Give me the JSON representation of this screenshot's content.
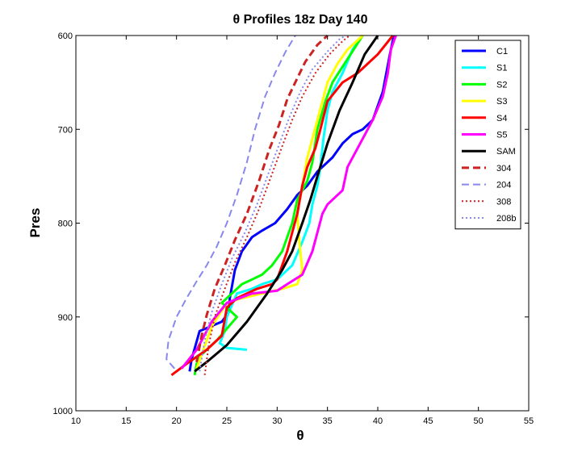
{
  "chart_data": {
    "type": "line",
    "title": "θ Profiles 18z Day 140",
    "xlabel": "θ",
    "ylabel": "Pres",
    "xlim": [
      10,
      55
    ],
    "ylim": [
      1000,
      600
    ],
    "y_reversed": true,
    "grid": false,
    "legend_placement": "top-right",
    "x_ticks": [
      "10",
      "15",
      "20",
      "25",
      "30",
      "35",
      "40",
      "45",
      "50",
      "55"
    ],
    "y_ticks": [
      "600",
      "700",
      "800",
      "900",
      "1000"
    ],
    "series": [
      {
        "name": "C1",
        "color": "#0000ff",
        "dash": "solid",
        "width": 3,
        "x": [
          21.3,
          21.5,
          22.3,
          24.5,
          25.2,
          25.3,
          25.8,
          26.5,
          27.5,
          28.5,
          29.8,
          31.0,
          32.0,
          33.0,
          34.0,
          35.5,
          36.5,
          37.5,
          38.5,
          39.5,
          40.5,
          41.2,
          41.6
        ],
        "y": [
          958,
          945,
          915,
          905,
          895,
          880,
          850,
          830,
          815,
          808,
          800,
          785,
          770,
          760,
          745,
          730,
          715,
          705,
          700,
          690,
          660,
          620,
          600
        ]
      },
      {
        "name": "S1",
        "color": "#00ffff",
        "dash": "solid",
        "width": 3,
        "x": [
          27.0,
          25.0,
          24.3,
          24.8,
          25.0,
          26.0,
          27.5,
          28.5,
          30.0,
          31.5,
          32.5,
          33.2,
          33.5,
          34.0,
          34.3,
          34.6,
          35.0,
          35.5,
          36.5,
          37.5,
          38.5
        ],
        "y": [
          935,
          933,
          928,
          915,
          900,
          875,
          870,
          865,
          860,
          845,
          820,
          800,
          780,
          760,
          740,
          710,
          680,
          660,
          640,
          615,
          600
        ]
      },
      {
        "name": "S2",
        "color": "#00ff00",
        "dash": "solid",
        "width": 3,
        "x": [
          21.8,
          22.0,
          22.5,
          24.0,
          26.0,
          24.5,
          25.5,
          26.5,
          27.5,
          28.5,
          29.5,
          30.5,
          31.5,
          32.0,
          33.0,
          33.5,
          34.0,
          34.8,
          35.5,
          37.0,
          38.5
        ],
        "y": [
          962,
          950,
          940,
          925,
          900,
          885,
          875,
          865,
          860,
          855,
          845,
          830,
          800,
          775,
          755,
          735,
          700,
          670,
          650,
          625,
          600
        ]
      },
      {
        "name": "S3",
        "color": "#ffff00",
        "dash": "solid",
        "width": 3,
        "x": [
          22.0,
          22.5,
          23.5,
          25.0,
          26.5,
          28.5,
          30.5,
          32.0,
          32.5,
          32.2,
          32.0,
          32.5,
          33.0,
          33.5,
          34.0,
          34.5,
          35.0,
          36.0,
          37.0,
          38.5
        ],
        "y": [
          955,
          940,
          910,
          885,
          880,
          875,
          870,
          865,
          850,
          820,
          790,
          760,
          730,
          710,
          690,
          670,
          650,
          630,
          615,
          600
        ]
      },
      {
        "name": "S4",
        "color": "#ff0000",
        "dash": "solid",
        "width": 3,
        "x": [
          19.5,
          21.0,
          23.0,
          24.5,
          25.0,
          26.0,
          28.0,
          29.5,
          30.0,
          30.5,
          31.0,
          31.5,
          32.0,
          32.5,
          33.0,
          33.8,
          34.3,
          35.0,
          36.5,
          38.0,
          40.0,
          41.5
        ],
        "y": [
          962,
          950,
          935,
          920,
          890,
          880,
          870,
          865,
          860,
          845,
          830,
          810,
          790,
          760,
          740,
          720,
          700,
          670,
          650,
          640,
          620,
          600
        ]
      },
      {
        "name": "S5",
        "color": "#ff00ff",
        "dash": "solid",
        "width": 3,
        "x": [
          20.5,
          22.0,
          23.5,
          25.0,
          27.5,
          30.0,
          31.0,
          32.5,
          33.5,
          34.5,
          35.0,
          36.5,
          37.0,
          38.5,
          39.5,
          40.5,
          41.0,
          41.3,
          41.8
        ],
        "y": [
          955,
          935,
          905,
          885,
          875,
          872,
          865,
          855,
          830,
          790,
          780,
          765,
          740,
          710,
          690,
          665,
          640,
          615,
          600
        ]
      },
      {
        "name": "SAM",
        "color": "#000000",
        "dash": "solid",
        "width": 3,
        "x": [
          21.8,
          23.0,
          25.0,
          27.0,
          29.0,
          30.5,
          31.5,
          32.5,
          33.3,
          34.0,
          35.0,
          36.2,
          37.5,
          38.7,
          40.0
        ],
        "y": [
          958,
          948,
          930,
          905,
          875,
          850,
          830,
          800,
          775,
          750,
          715,
          680,
          650,
          620,
          600
        ]
      },
      {
        "name": "304",
        "color": "#cc2222",
        "dash": "dashed",
        "width": 3,
        "x": [
          22.0,
          22.5,
          23.0,
          23.8,
          24.8,
          25.8,
          27.0,
          28.2,
          29.2,
          30.2,
          31.0,
          31.8,
          32.8,
          34.0,
          35.0
        ],
        "y": [
          948,
          920,
          898,
          870,
          845,
          818,
          790,
          755,
          722,
          695,
          668,
          650,
          628,
          610,
          600
        ]
      },
      {
        "name": "204",
        "color": "#8888ee",
        "dash": "dashed",
        "width": 2,
        "x": [
          19.8,
          19.0,
          19.2,
          20.0,
          21.0,
          22.0,
          23.0,
          24.0,
          25.0,
          26.0,
          27.0,
          27.8,
          28.8,
          29.8,
          30.8,
          31.8
        ],
        "y": [
          955,
          945,
          925,
          900,
          880,
          862,
          845,
          825,
          800,
          770,
          735,
          700,
          665,
          640,
          618,
          600
        ]
      },
      {
        "name": "308",
        "color": "#cc2222",
        "dash": "dotted",
        "width": 2,
        "x": [
          22.8,
          23.2,
          23.8,
          24.8,
          25.8,
          27.0,
          28.2,
          29.4,
          30.5,
          31.5,
          32.5,
          33.8,
          35.2,
          36.5,
          37.2
        ],
        "y": [
          962,
          930,
          900,
          870,
          842,
          815,
          785,
          750,
          718,
          690,
          665,
          640,
          620,
          606,
          600
        ]
      },
      {
        "name": "208b",
        "color": "#8888ee",
        "dash": "dotted",
        "width": 2,
        "x": [
          22.3,
          22.8,
          23.5,
          24.5,
          25.5,
          26.8,
          28.0,
          29.2,
          30.3,
          31.3,
          32.3,
          33.5,
          35.0,
          36.2,
          36.8
        ],
        "y": [
          958,
          925,
          895,
          865,
          838,
          810,
          780,
          745,
          713,
          685,
          660,
          636,
          617,
          604,
          600
        ]
      }
    ]
  }
}
